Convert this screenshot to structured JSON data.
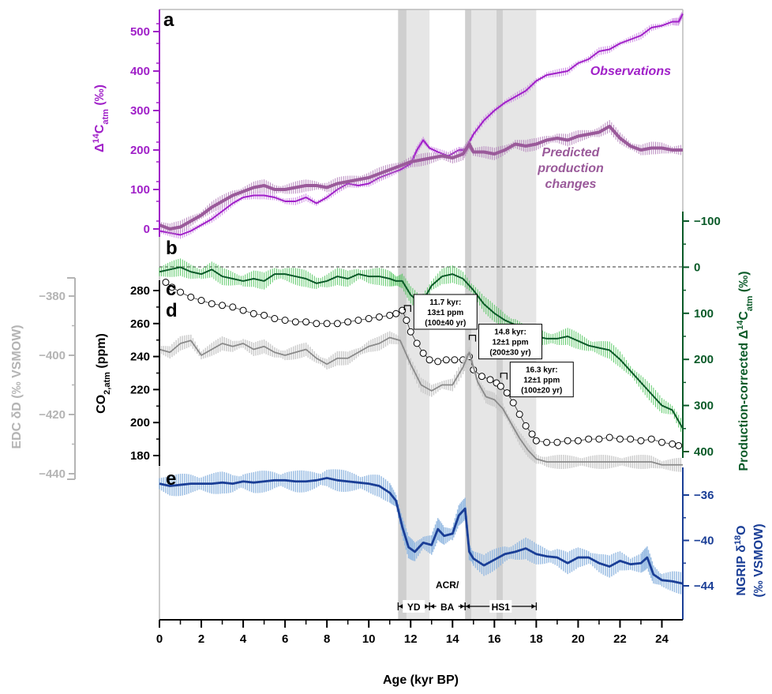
{
  "chart_data": {
    "type": "line",
    "xaxis": {
      "label": "Age (kyr BP)",
      "range": [
        0,
        25
      ],
      "ticks": [
        0,
        2,
        4,
        6,
        8,
        10,
        12,
        14,
        16,
        18,
        20,
        22,
        24
      ]
    },
    "intervals": [
      {
        "start": 11.4,
        "end": 12.9,
        "dark_start": 11.4,
        "dark_end": 11.8
      },
      {
        "start": 14.6,
        "end": 18.0,
        "dark_start": 14.6,
        "dark_end": 14.9
      },
      {
        "dark_start": 16.1,
        "dark_end": 16.4
      }
    ],
    "dark_bands": [
      [
        11.4,
        11.8
      ],
      [
        14.6,
        14.9
      ],
      [
        16.1,
        16.4
      ]
    ],
    "light_bands": [
      [
        11.8,
        12.9
      ],
      [
        14.9,
        18.0
      ]
    ],
    "periods": [
      {
        "label": "YD",
        "start": 11.4,
        "end": 12.9
      },
      {
        "label": "BA",
        "start": 12.9,
        "end": 14.6,
        "label_top": "ACR/"
      },
      {
        "label": "HS1",
        "start": 14.6,
        "end": 18.0
      }
    ],
    "panels": {
      "a": {
        "letter": "a",
        "axis_label": "Δ14Catm (‰)",
        "color": "#a020c8",
        "range": [
          -30,
          555
        ],
        "ticks": [
          0,
          100,
          200,
          300,
          400,
          500
        ]
      },
      "b": {
        "letter": "b",
        "axis_label": "Production-corrected Δ14Catm (‰)",
        "color": "#0a5a28",
        "range": [
          -100,
          400
        ],
        "ticks": [
          -100,
          0,
          100,
          200,
          300,
          400
        ]
      },
      "c": {
        "letter": "c",
        "axis_label": "CO2,atm (ppm)",
        "color": "#000000",
        "range": [
          180,
          280
        ],
        "ticks": [
          180,
          200,
          220,
          240,
          260,
          280
        ]
      },
      "d": {
        "letter": "d",
        "axis_label": "EDC δD (‰ VSMOW)",
        "color": "#b4b4b4",
        "range": [
          -440,
          -380
        ],
        "ticks": [
          -440,
          -420,
          -400,
          -380
        ]
      },
      "e": {
        "letter": "e",
        "axis_label": "NGRIP δ18O (‰ VSMOW)",
        "color": "#1a3e96",
        "range": [
          -44,
          -36
        ],
        "ticks": [
          -44,
          -40,
          -36
        ]
      }
    },
    "series": [
      {
        "name": "Observations",
        "panel": "a",
        "color": "#a020c8",
        "x": [
          0,
          0.5,
          1,
          1.5,
          2,
          2.5,
          3,
          3.5,
          4,
          4.5,
          5,
          5.5,
          6,
          6.5,
          7,
          7.5,
          8,
          8.5,
          9,
          9.5,
          10,
          10.5,
          11,
          11.5,
          12,
          12.3,
          12.6,
          12.9,
          13.3,
          13.8,
          14.3,
          14.6,
          15,
          15.5,
          16,
          16.5,
          17,
          17.5,
          18,
          18.5,
          19,
          19.5,
          20,
          20.5,
          21,
          21.5,
          22,
          22.5,
          23,
          23.5,
          24,
          24.5,
          24.8,
          25
        ],
        "y": [
          -5,
          -10,
          -15,
          -5,
          10,
          25,
          45,
          65,
          80,
          85,
          85,
          80,
          70,
          70,
          80,
          65,
          80,
          100,
          115,
          110,
          115,
          130,
          140,
          150,
          165,
          200,
          225,
          205,
          195,
          185,
          200,
          200,
          240,
          275,
          300,
          320,
          335,
          350,
          375,
          390,
          395,
          400,
          420,
          430,
          450,
          455,
          470,
          480,
          490,
          510,
          515,
          525,
          525,
          545
        ]
      },
      {
        "name": "Predicted production changes",
        "panel": "a",
        "color": "#9a5a9a",
        "x": [
          0,
          0.5,
          1,
          1.5,
          2,
          2.5,
          3,
          3.5,
          4,
          4.5,
          5,
          5.5,
          6,
          6.5,
          7,
          7.5,
          8,
          8.5,
          9,
          9.5,
          10,
          10.5,
          11,
          11.5,
          12,
          12.5,
          13,
          13.5,
          14,
          14.5,
          14.8,
          15,
          15.5,
          16,
          16.5,
          17,
          17.5,
          18,
          18.5,
          19,
          19.5,
          20,
          20.5,
          21,
          21.5,
          22,
          22.5,
          23,
          23.5,
          24,
          24.5,
          25
        ],
        "y": [
          10,
          0,
          5,
          20,
          35,
          55,
          70,
          85,
          95,
          105,
          110,
          100,
          100,
          105,
          110,
          110,
          105,
          115,
          120,
          125,
          130,
          140,
          150,
          160,
          170,
          175,
          180,
          185,
          180,
          190,
          215,
          195,
          195,
          190,
          200,
          215,
          210,
          215,
          225,
          230,
          225,
          235,
          240,
          245,
          260,
          230,
          210,
          200,
          205,
          205,
          200,
          200
        ]
      },
      {
        "name": "",
        "panel": "b",
        "color": "#0a5a28",
        "x": [
          0,
          0.5,
          1,
          1.5,
          2,
          2.5,
          3,
          3.5,
          4,
          4.5,
          5,
          5.5,
          6,
          6.5,
          7,
          7.5,
          8,
          8.5,
          9,
          9.5,
          10,
          10.5,
          11,
          11.3,
          11.6,
          12,
          12.5,
          13,
          13.5,
          14,
          14.5,
          15,
          15.5,
          16,
          16.5,
          17,
          17.5,
          18,
          18.5,
          19,
          19.5,
          20,
          20.5,
          21,
          21.5,
          22,
          22.5,
          23,
          23.5,
          24,
          24.5,
          25
        ],
        "y": [
          10,
          5,
          0,
          10,
          15,
          5,
          20,
          25,
          30,
          25,
          30,
          15,
          15,
          20,
          25,
          35,
          30,
          20,
          25,
          15,
          20,
          20,
          25,
          30,
          30,
          60,
          80,
          40,
          20,
          15,
          25,
          50,
          80,
          100,
          115,
          125,
          145,
          150,
          155,
          155,
          150,
          160,
          170,
          175,
          180,
          200,
          225,
          250,
          275,
          300,
          310,
          350
        ]
      },
      {
        "name": "",
        "panel": "c",
        "color": "#000000",
        "x": [
          0.3,
          0.6,
          1,
          1.5,
          2,
          2.5,
          3,
          3.5,
          4,
          4.5,
          5,
          5.5,
          6,
          6.5,
          7,
          7.5,
          8,
          8.5,
          9,
          9.5,
          10,
          10.5,
          11,
          11.3,
          11.6,
          11.8,
          12,
          12.3,
          12.6,
          12.9,
          13.3,
          13.7,
          14.1,
          14.5,
          14.8,
          15,
          15.4,
          15.8,
          16.1,
          16.3,
          16.6,
          16.9,
          17.2,
          17.5,
          17.8,
          18,
          18.5,
          19,
          19.5,
          20,
          20.5,
          21,
          21.5,
          22,
          22.5,
          23,
          23.5,
          24,
          24.5,
          24.8
        ],
        "y": [
          285,
          282,
          279,
          276,
          274,
          272,
          271,
          270,
          268,
          266,
          265,
          263,
          262,
          261,
          261,
          260,
          260,
          260,
          261,
          262,
          263,
          264,
          265,
          266,
          268,
          262,
          255,
          248,
          242,
          238,
          237,
          238,
          238,
          238,
          240,
          232,
          228,
          226,
          224,
          222,
          218,
          212,
          205,
          198,
          193,
          189,
          188,
          188,
          189,
          189,
          190,
          190,
          191,
          190,
          190,
          189,
          190,
          188,
          187,
          186
        ]
      },
      {
        "name": "",
        "panel": "d",
        "color": "#8a8a8a",
        "x": [
          0,
          0.5,
          1,
          1.5,
          2,
          2.5,
          3,
          3.5,
          4,
          4.5,
          5,
          5.5,
          6,
          6.5,
          7,
          7.5,
          8,
          8.5,
          9,
          9.5,
          10,
          10.5,
          11,
          11.5,
          12,
          12.5,
          13,
          13.5,
          14,
          14.5,
          14.8,
          15.2,
          15.6,
          16,
          16.4,
          16.8,
          17.2,
          17.6,
          18,
          18.5,
          19,
          19.5,
          20,
          20.5,
          21,
          21.5,
          22,
          22.5,
          23,
          23.5,
          24,
          24.5,
          25
        ],
        "y": [
          -398,
          -399,
          -396,
          -395,
          -400,
          -398,
          -396,
          -397,
          -396,
          -398,
          -397,
          -399,
          -400,
          -399,
          -398,
          -401,
          -403,
          -401,
          -401,
          -399,
          -397,
          -396,
          -394,
          -395,
          -403,
          -410,
          -412,
          -410,
          -410,
          -404,
          -399,
          -409,
          -414,
          -415,
          -418,
          -423,
          -428,
          -432,
          -435,
          -436,
          -436,
          -436,
          -436,
          -436,
          -436,
          -436,
          -436,
          -436,
          -436,
          -436,
          -437,
          -437,
          -437
        ]
      },
      {
        "name": "",
        "panel": "e",
        "color": "#1a3e96",
        "x": [
          0,
          0.5,
          1,
          1.5,
          2,
          2.5,
          3,
          3.5,
          4,
          4.5,
          5,
          5.5,
          6,
          6.5,
          7,
          7.5,
          8,
          8.5,
          9,
          9.5,
          10,
          10.5,
          11,
          11.3,
          11.6,
          11.9,
          12.2,
          12.6,
          13,
          13.3,
          13.6,
          14,
          14.3,
          14.6,
          14.8,
          15,
          15.5,
          16,
          16.5,
          17,
          17.5,
          18,
          18.5,
          19,
          19.5,
          20,
          20.5,
          21,
          21.5,
          22,
          22.5,
          23,
          23.3,
          23.6,
          24,
          24.5,
          25
        ],
        "y": [
          -35,
          -35.2,
          -35.1,
          -35,
          -35,
          -35,
          -34.9,
          -35,
          -34.8,
          -34.9,
          -34.8,
          -34.7,
          -34.7,
          -34.8,
          -34.8,
          -34.7,
          -34.5,
          -34.7,
          -34.8,
          -34.9,
          -35,
          -35.2,
          -35.8,
          -36.5,
          -38.8,
          -40.6,
          -41,
          -40.2,
          -40.4,
          -39,
          -39.6,
          -39.4,
          -37.8,
          -37.2,
          -41,
          -41.6,
          -42.2,
          -41.7,
          -41.2,
          -41,
          -40.7,
          -41.2,
          -41.4,
          -41.5,
          -42,
          -41.5,
          -41.5,
          -42,
          -42.3,
          -41.8,
          -42.1,
          -42,
          -41.5,
          -43,
          -43.5,
          -43.6,
          -43.8
        ]
      }
    ],
    "annotations": [
      {
        "id": "ann1",
        "x": 11.7,
        "y": 269,
        "line1": "11.7 kyr:",
        "line2": "13±1 ppm",
        "line3": "(100±40 yr)"
      },
      {
        "id": "ann2",
        "x": 14.8,
        "y": 251,
        "line1": "14.8 kyr:",
        "line2": "12±1 ppm",
        "line3": "(200±30 yr)"
      },
      {
        "id": "ann3",
        "x": 16.3,
        "y": 228,
        "line1": "16.3 kyr:",
        "line2": "12±1 ppm",
        "line3": "(100±20 yr)"
      }
    ]
  }
}
